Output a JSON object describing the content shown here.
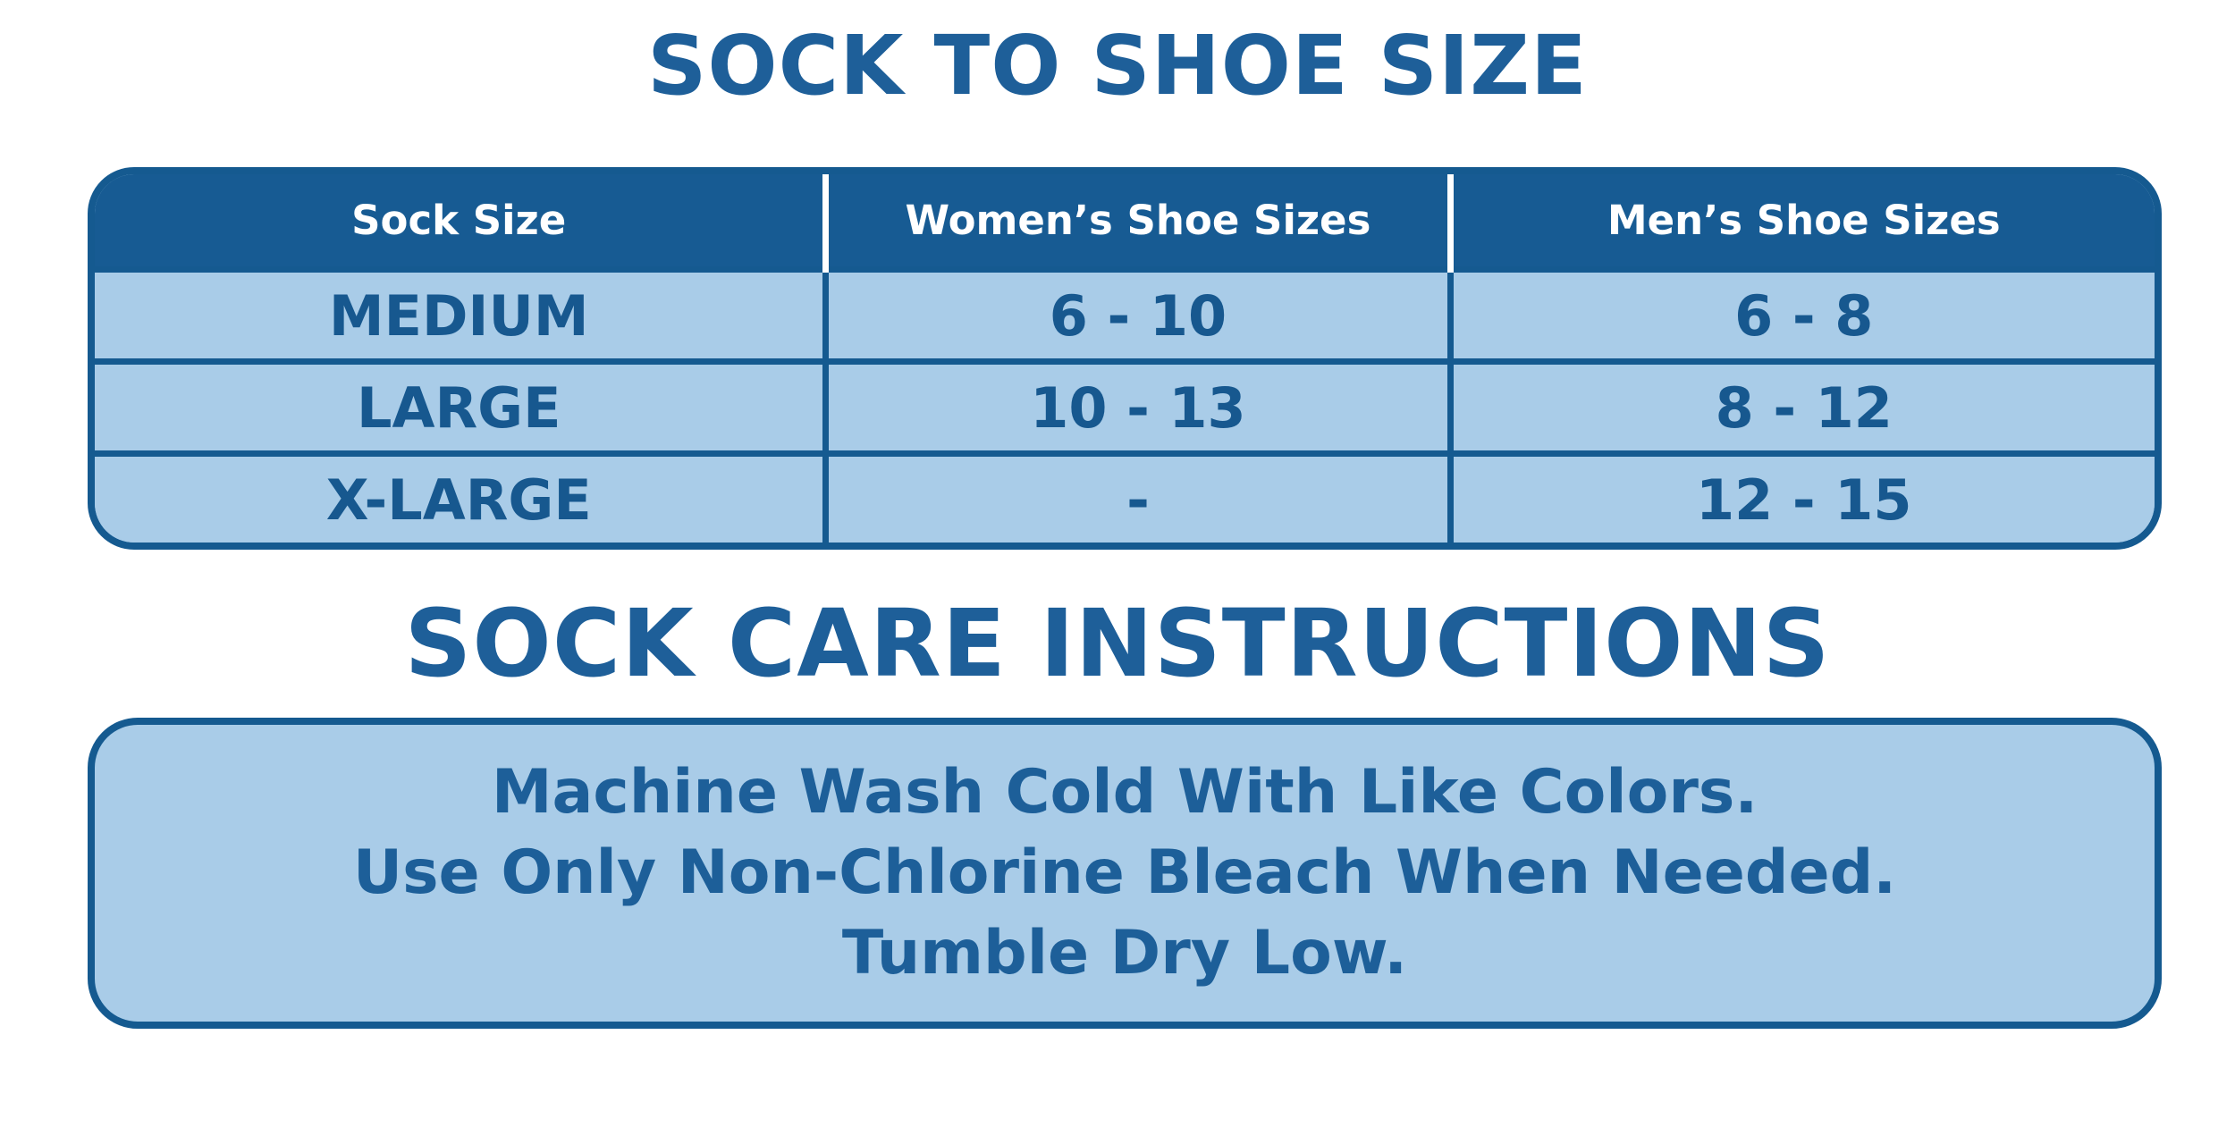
{
  "colors": {
    "dark_blue": "#175b93",
    "border_blue": "#155a90",
    "light_blue": "#a9cce8",
    "text_blue": "#1d5f99",
    "header_text": "#ffffff",
    "background": "#ffffff"
  },
  "size_section": {
    "title": "SOCK TO SHOE SIZE"
  },
  "care_section": {
    "title": "SOCK CARE INSTRUCTIONS",
    "lines": [
      "Machine Wash Cold With Like Colors.",
      "Use Only Non-Chlorine Bleach When Needed.",
      "Tumble Dry Low."
    ]
  },
  "chart_data": {
    "type": "table",
    "title": "SOCK TO SHOE SIZE",
    "columns": [
      "Sock Size",
      "Women’s Shoe Sizes",
      "Men’s Shoe Sizes"
    ],
    "rows": [
      [
        "MEDIUM",
        "6 - 10",
        "6 - 8"
      ],
      [
        "LARGE",
        "10 - 13",
        "8 - 12"
      ],
      [
        "X-LARGE",
        "-",
        "12 - 15"
      ]
    ],
    "layout_hints": {
      "header_background": "#175b93",
      "body_background": "#a9cce8",
      "grid": true
    }
  }
}
